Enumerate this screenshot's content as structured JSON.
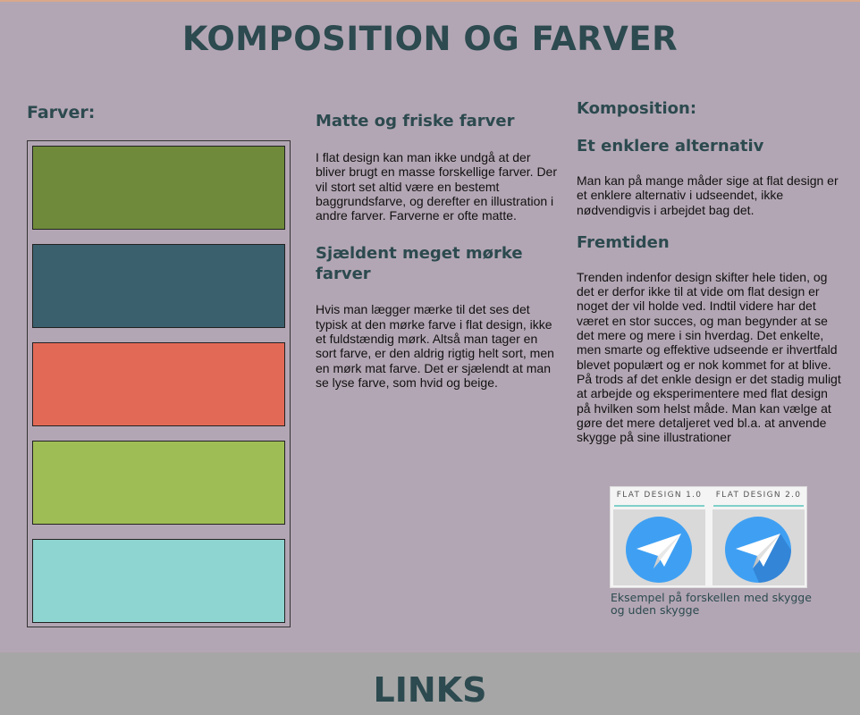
{
  "header": {
    "title": "KOMPOSITION OG FARVER"
  },
  "colors": {
    "heading": "Farver:",
    "swatches": [
      "#6f8a3a",
      "#3a606e",
      "#e36957",
      "#9fbd55",
      "#8ed4d0"
    ]
  },
  "middle": {
    "section1": {
      "title": "Matte og friske farver",
      "text": "I flat design kan man ikke undgå at der bliver brugt en masse forskellige farver. Der vil stort set altid være en bestemt baggrundsfarve, og derefter en illustration i andre farver. Farverne er ofte matte."
    },
    "section2": {
      "title": "Sjældent meget mørke farver",
      "text": "Hvis man lægger mærke til det ses det typisk at den mørke farve i flat design, ikke et fuldstændig mørk. Altså man tager en sort farve, er den aldrig rigtig helt sort, men en mørk mat farve. Det er sjælendt at man se lyse farve, som hvid og beige."
    }
  },
  "right": {
    "heading": "Komposition:",
    "section1": {
      "title": "Et enklere alternativ",
      "text": "Man kan på mange måder sige at flat design er et enklere alternativ i udseendet, ikke nødvendigvis i arbejdet bag det."
    },
    "section2": {
      "title": "Fremtiden",
      "text": "Trenden indenfor design skifter hele tiden, og det er derfor ikke til at vide om flat design er noget der vil holde ved. Indtil videre har det været en stor succes, og man begynder at se det mere og mere i sin hverdag. Det enkelte, men smarte og effektive udseende er ihvertfald blevet populært og er nok kommet for at blive. På trods af det enkle design er det stadig muligt at arbejde og eksperimentere med flat design på hvilken som helst måde. Man kan vælge at gøre det mere detaljeret ved bl.a. at anvende skygge på sine illustrationer"
    },
    "figure": {
      "label1": "FLAT DESIGN 1.0",
      "label2": "FLAT DESIGN 2.0",
      "icon": "paper-plane-icon",
      "circle_color": "#3fa0f3",
      "caption": "Eksempel på forskellen med skygge og uden skygge"
    }
  },
  "footer": {
    "title": "LINKS"
  }
}
